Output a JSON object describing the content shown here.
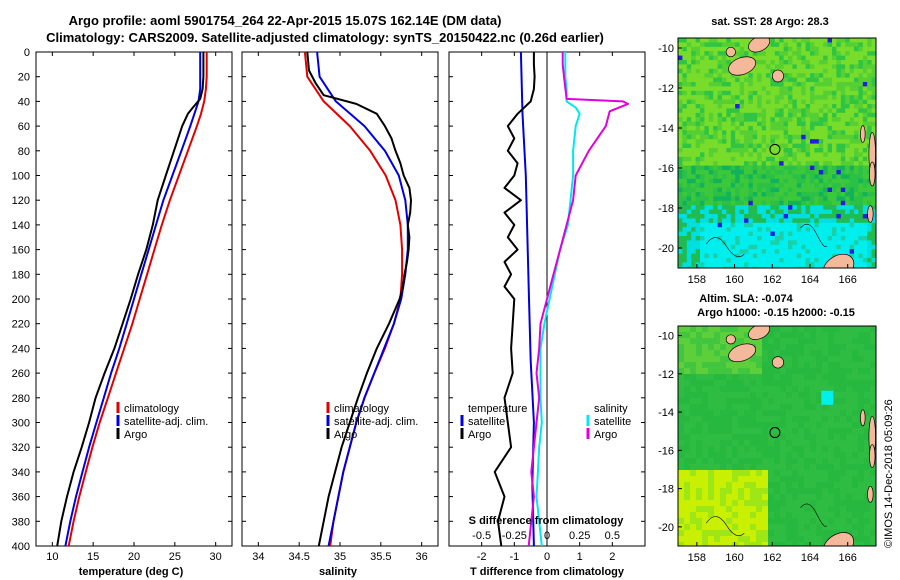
{
  "title": {
    "line1": "Argo profile: aoml 5901754_264 22-Apr-2015 15.07S 162.14E (DM data)",
    "line2": "Climatology: CARS2009. Satellite-adjusted climatology: synTS_20150422.nc (0.26d earlier)"
  },
  "map_titles": {
    "sst": "sat. SST: 28 Argo: 28.3",
    "sla_line1": "Altim. SLA: -0.074",
    "sla_line2": "Argo h1000: -0.15 h2000: -0.15"
  },
  "credit": "©IMOS 14-Dec-2018 05:09:26",
  "colors": {
    "climatology": "#e00000",
    "satellite": "#0000dd",
    "argo": "#000000",
    "s_satellite": "#00e8ee",
    "s_argo": "#e000e0"
  },
  "chart_data": [
    {
      "type": "line",
      "title": "",
      "xlabel": "temperature (deg C)",
      "ylabel": "",
      "xlim": [
        8,
        32
      ],
      "ylim": [
        400,
        0
      ],
      "xticks": [
        "10",
        "15",
        "20",
        "25",
        "30"
      ],
      "xtick_values": [
        10,
        15,
        20,
        25,
        30
      ],
      "yticks": [
        "0",
        "20",
        "40",
        "60",
        "80",
        "100",
        "120",
        "140",
        "160",
        "180",
        "200",
        "220",
        "240",
        "260",
        "280",
        "300",
        "320",
        "340",
        "360",
        "380",
        "400"
      ],
      "legend": [
        "climatology",
        "satellite-adj. clim.",
        "Argo"
      ],
      "series": [
        {
          "name": "climatology",
          "depth": [
            0,
            20,
            30,
            40,
            50,
            60,
            80,
            100,
            120,
            140,
            160,
            180,
            200,
            220,
            240,
            260,
            280,
            300,
            320,
            340,
            360,
            380,
            400
          ],
          "values": [
            28.9,
            28.9,
            28.8,
            28.6,
            28.2,
            27.7,
            26.6,
            25.5,
            24.4,
            23.4,
            22.5,
            21.6,
            20.7,
            19.8,
            18.8,
            17.8,
            16.8,
            15.8,
            14.9,
            14.1,
            13.3,
            12.6,
            12.0
          ]
        },
        {
          "name": "satellite-adj. clim.",
          "depth": [
            0,
            20,
            30,
            40,
            50,
            60,
            80,
            100,
            120,
            140,
            160,
            180,
            200,
            220,
            240,
            260,
            280,
            300,
            320,
            340,
            360,
            380,
            400
          ],
          "values": [
            28.1,
            28.1,
            28.1,
            27.9,
            27.4,
            26.9,
            25.8,
            24.7,
            23.6,
            22.7,
            21.8,
            20.9,
            20.0,
            19.1,
            18.2,
            17.2,
            16.3,
            15.4,
            14.5,
            13.7,
            12.9,
            12.2,
            11.6
          ]
        },
        {
          "name": "Argo",
          "depth": [
            0,
            20,
            30,
            38,
            45,
            50,
            60,
            80,
            100,
            120,
            140,
            160,
            180,
            200,
            220,
            240,
            260,
            280,
            300,
            320,
            340,
            360,
            380,
            400
          ],
          "values": [
            28.5,
            28.5,
            28.4,
            28.1,
            27.2,
            26.6,
            25.9,
            24.9,
            23.9,
            22.9,
            22.3,
            21.5,
            20.5,
            19.6,
            18.6,
            17.6,
            16.4,
            15.3,
            14.5,
            13.6,
            12.6,
            11.8,
            11.1,
            10.6
          ]
        }
      ]
    },
    {
      "type": "line",
      "title": "",
      "xlabel": "salinity",
      "ylabel": "",
      "xlim": [
        33.8,
        36.2
      ],
      "ylim": [
        400,
        0
      ],
      "xticks": [
        "34",
        "34.5",
        "35",
        "35.5",
        "36"
      ],
      "xtick_values": [
        34,
        34.5,
        35,
        35.5,
        36
      ],
      "legend": [
        "climatology",
        "satellite-adj. clim.",
        "Argo"
      ],
      "series": [
        {
          "name": "climatology",
          "depth": [
            0,
            20,
            40,
            60,
            80,
            100,
            120,
            140,
            160,
            180,
            200,
            220,
            240,
            260,
            280,
            300,
            320,
            340,
            360,
            380,
            400
          ],
          "values": [
            34.57,
            34.6,
            34.8,
            35.12,
            35.37,
            35.56,
            35.68,
            35.74,
            35.76,
            35.76,
            35.74,
            35.66,
            35.55,
            35.42,
            35.3,
            35.2,
            35.12,
            35.04,
            34.98,
            34.92,
            34.88
          ]
        },
        {
          "name": "satellite-adj. clim.",
          "depth": [
            0,
            20,
            40,
            60,
            80,
            100,
            120,
            140,
            160,
            180,
            200,
            220,
            240,
            260,
            280,
            300,
            320,
            340,
            360,
            380,
            400
          ],
          "values": [
            34.72,
            34.75,
            34.95,
            35.3,
            35.55,
            35.72,
            35.8,
            35.83,
            35.83,
            35.8,
            35.75,
            35.66,
            35.54,
            35.42,
            35.3,
            35.2,
            35.12,
            35.04,
            34.98,
            34.92,
            34.86
          ]
        },
        {
          "name": "Argo",
          "depth": [
            0,
            15,
            25,
            35,
            42,
            50,
            60,
            70,
            80,
            90,
            100,
            110,
            120,
            130,
            140,
            150,
            160,
            170,
            180,
            190,
            200,
            220,
            240,
            260,
            280,
            300,
            320,
            340,
            360,
            380,
            400
          ],
          "values": [
            34.6,
            34.62,
            34.7,
            34.8,
            35.2,
            35.45,
            35.55,
            35.63,
            35.68,
            35.74,
            35.78,
            35.85,
            35.87,
            35.86,
            35.83,
            35.85,
            35.84,
            35.82,
            35.79,
            35.77,
            35.73,
            35.6,
            35.45,
            35.33,
            35.22,
            35.12,
            35.02,
            34.94,
            34.86,
            34.8,
            34.74
          ]
        }
      ]
    },
    {
      "type": "line",
      "title": "",
      "xlabel": "T difference from climatology",
      "xlabel_top": "S difference from climatology",
      "xlim": [
        -3,
        3
      ],
      "ylim": [
        400,
        0
      ],
      "xticks": [
        "-2",
        "-1",
        "0",
        "1",
        "2"
      ],
      "xtick_values": [
        -2,
        -1,
        0,
        1,
        2
      ],
      "xticks_top": [
        "-0.5",
        "-0.25",
        "0",
        "0.25",
        "0.5"
      ],
      "xtick_top_values": [
        -0.5,
        -0.25,
        0,
        0.25,
        0.5
      ],
      "s_scale": 4,
      "legend_temperature": {
        "heading": "temperature",
        "items": [
          "satellite",
          "Argo"
        ]
      },
      "legend_salinity": {
        "heading": "salinity",
        "items": [
          "satellite",
          "Argo"
        ]
      },
      "series": [
        {
          "name": "temperature satellite",
          "variable": "T",
          "depth": [
            0,
            50,
            100,
            150,
            200,
            250,
            300,
            350,
            400
          ],
          "values": [
            -0.8,
            -0.75,
            -0.65,
            -0.6,
            -0.55,
            -0.5,
            -0.4,
            -0.45,
            -0.4
          ]
        },
        {
          "name": "temperature Argo",
          "variable": "T",
          "depth": [
            0,
            10,
            20,
            30,
            40,
            50,
            60,
            70,
            80,
            90,
            100,
            110,
            120,
            130,
            140,
            150,
            160,
            170,
            180,
            190,
            200,
            220,
            240,
            260,
            280,
            300,
            320,
            340,
            360,
            380,
            400
          ],
          "values": [
            -0.4,
            -0.4,
            -0.38,
            -0.4,
            -0.5,
            -0.9,
            -1.2,
            -1.0,
            -1.2,
            -0.9,
            -1.0,
            -1.3,
            -0.8,
            -1.3,
            -1.0,
            -1.2,
            -0.9,
            -1.3,
            -1.1,
            -1.3,
            -1.0,
            -1.05,
            -1.1,
            -1.05,
            -1.3,
            -1.2,
            -1.1,
            -1.6,
            -1.3,
            -1.5,
            -1.4
          ]
        },
        {
          "name": "salinity satellite",
          "variable": "S",
          "depth": [
            0,
            20,
            30,
            40,
            45,
            50,
            60,
            80,
            100,
            120,
            140,
            160,
            180,
            200,
            220,
            240,
            260,
            280,
            300,
            320,
            340,
            360,
            380,
            400
          ],
          "values": [
            0.14,
            0.14,
            0.15,
            0.15,
            0.22,
            0.25,
            0.22,
            0.2,
            0.2,
            0.18,
            0.16,
            0.1,
            0.06,
            0.02,
            -0.02,
            -0.05,
            -0.05,
            -0.05,
            -0.04,
            -0.06,
            -0.07,
            -0.08,
            -0.06,
            -0.04
          ]
        },
        {
          "name": "salinity Argo",
          "variable": "S",
          "depth": [
            0,
            10,
            20,
            38,
            40,
            42,
            48,
            60,
            80,
            100,
            120,
            140,
            160,
            180,
            200,
            220,
            240,
            260,
            280,
            300,
            320,
            340,
            360,
            380,
            400
          ],
          "values": [
            0.12,
            0.12,
            0.13,
            0.15,
            0.58,
            0.62,
            0.48,
            0.45,
            0.32,
            0.22,
            0.2,
            0.15,
            0.1,
            0.05,
            0.0,
            -0.05,
            -0.06,
            -0.08,
            -0.06,
            -0.08,
            -0.1,
            -0.12,
            -0.1,
            -0.12,
            -0.14
          ]
        }
      ]
    },
    {
      "type": "heatmap",
      "title": "sat. SST: 28 Argo: 28.3",
      "xlim": [
        157,
        167.5
      ],
      "ylim": [
        -21,
        -9.5
      ],
      "xticks": [
        "158",
        "160",
        "162",
        "164",
        "166"
      ],
      "xtick_values": [
        158,
        160,
        162,
        164,
        166
      ],
      "yticks": [
        "-10",
        "-12",
        "-14",
        "-16",
        "-18",
        "-20"
      ],
      "ytick_values": [
        -10,
        -12,
        -14,
        -16,
        -18,
        -20
      ],
      "argo_position": [
        162.14,
        -15.07
      ]
    },
    {
      "type": "heatmap",
      "title": "Altim. SLA: -0.074",
      "xlim": [
        157,
        167.5
      ],
      "ylim": [
        -21,
        -9.5
      ],
      "xticks": [
        "158",
        "160",
        "162",
        "164",
        "166"
      ],
      "xtick_values": [
        158,
        160,
        162,
        164,
        166
      ],
      "yticks": [
        "-10",
        "-12",
        "-14",
        "-16",
        "-18",
        "-20"
      ],
      "ytick_values": [
        -10,
        -12,
        -14,
        -16,
        -18,
        -20
      ],
      "argo_position": [
        162.14,
        -15.07
      ]
    }
  ]
}
